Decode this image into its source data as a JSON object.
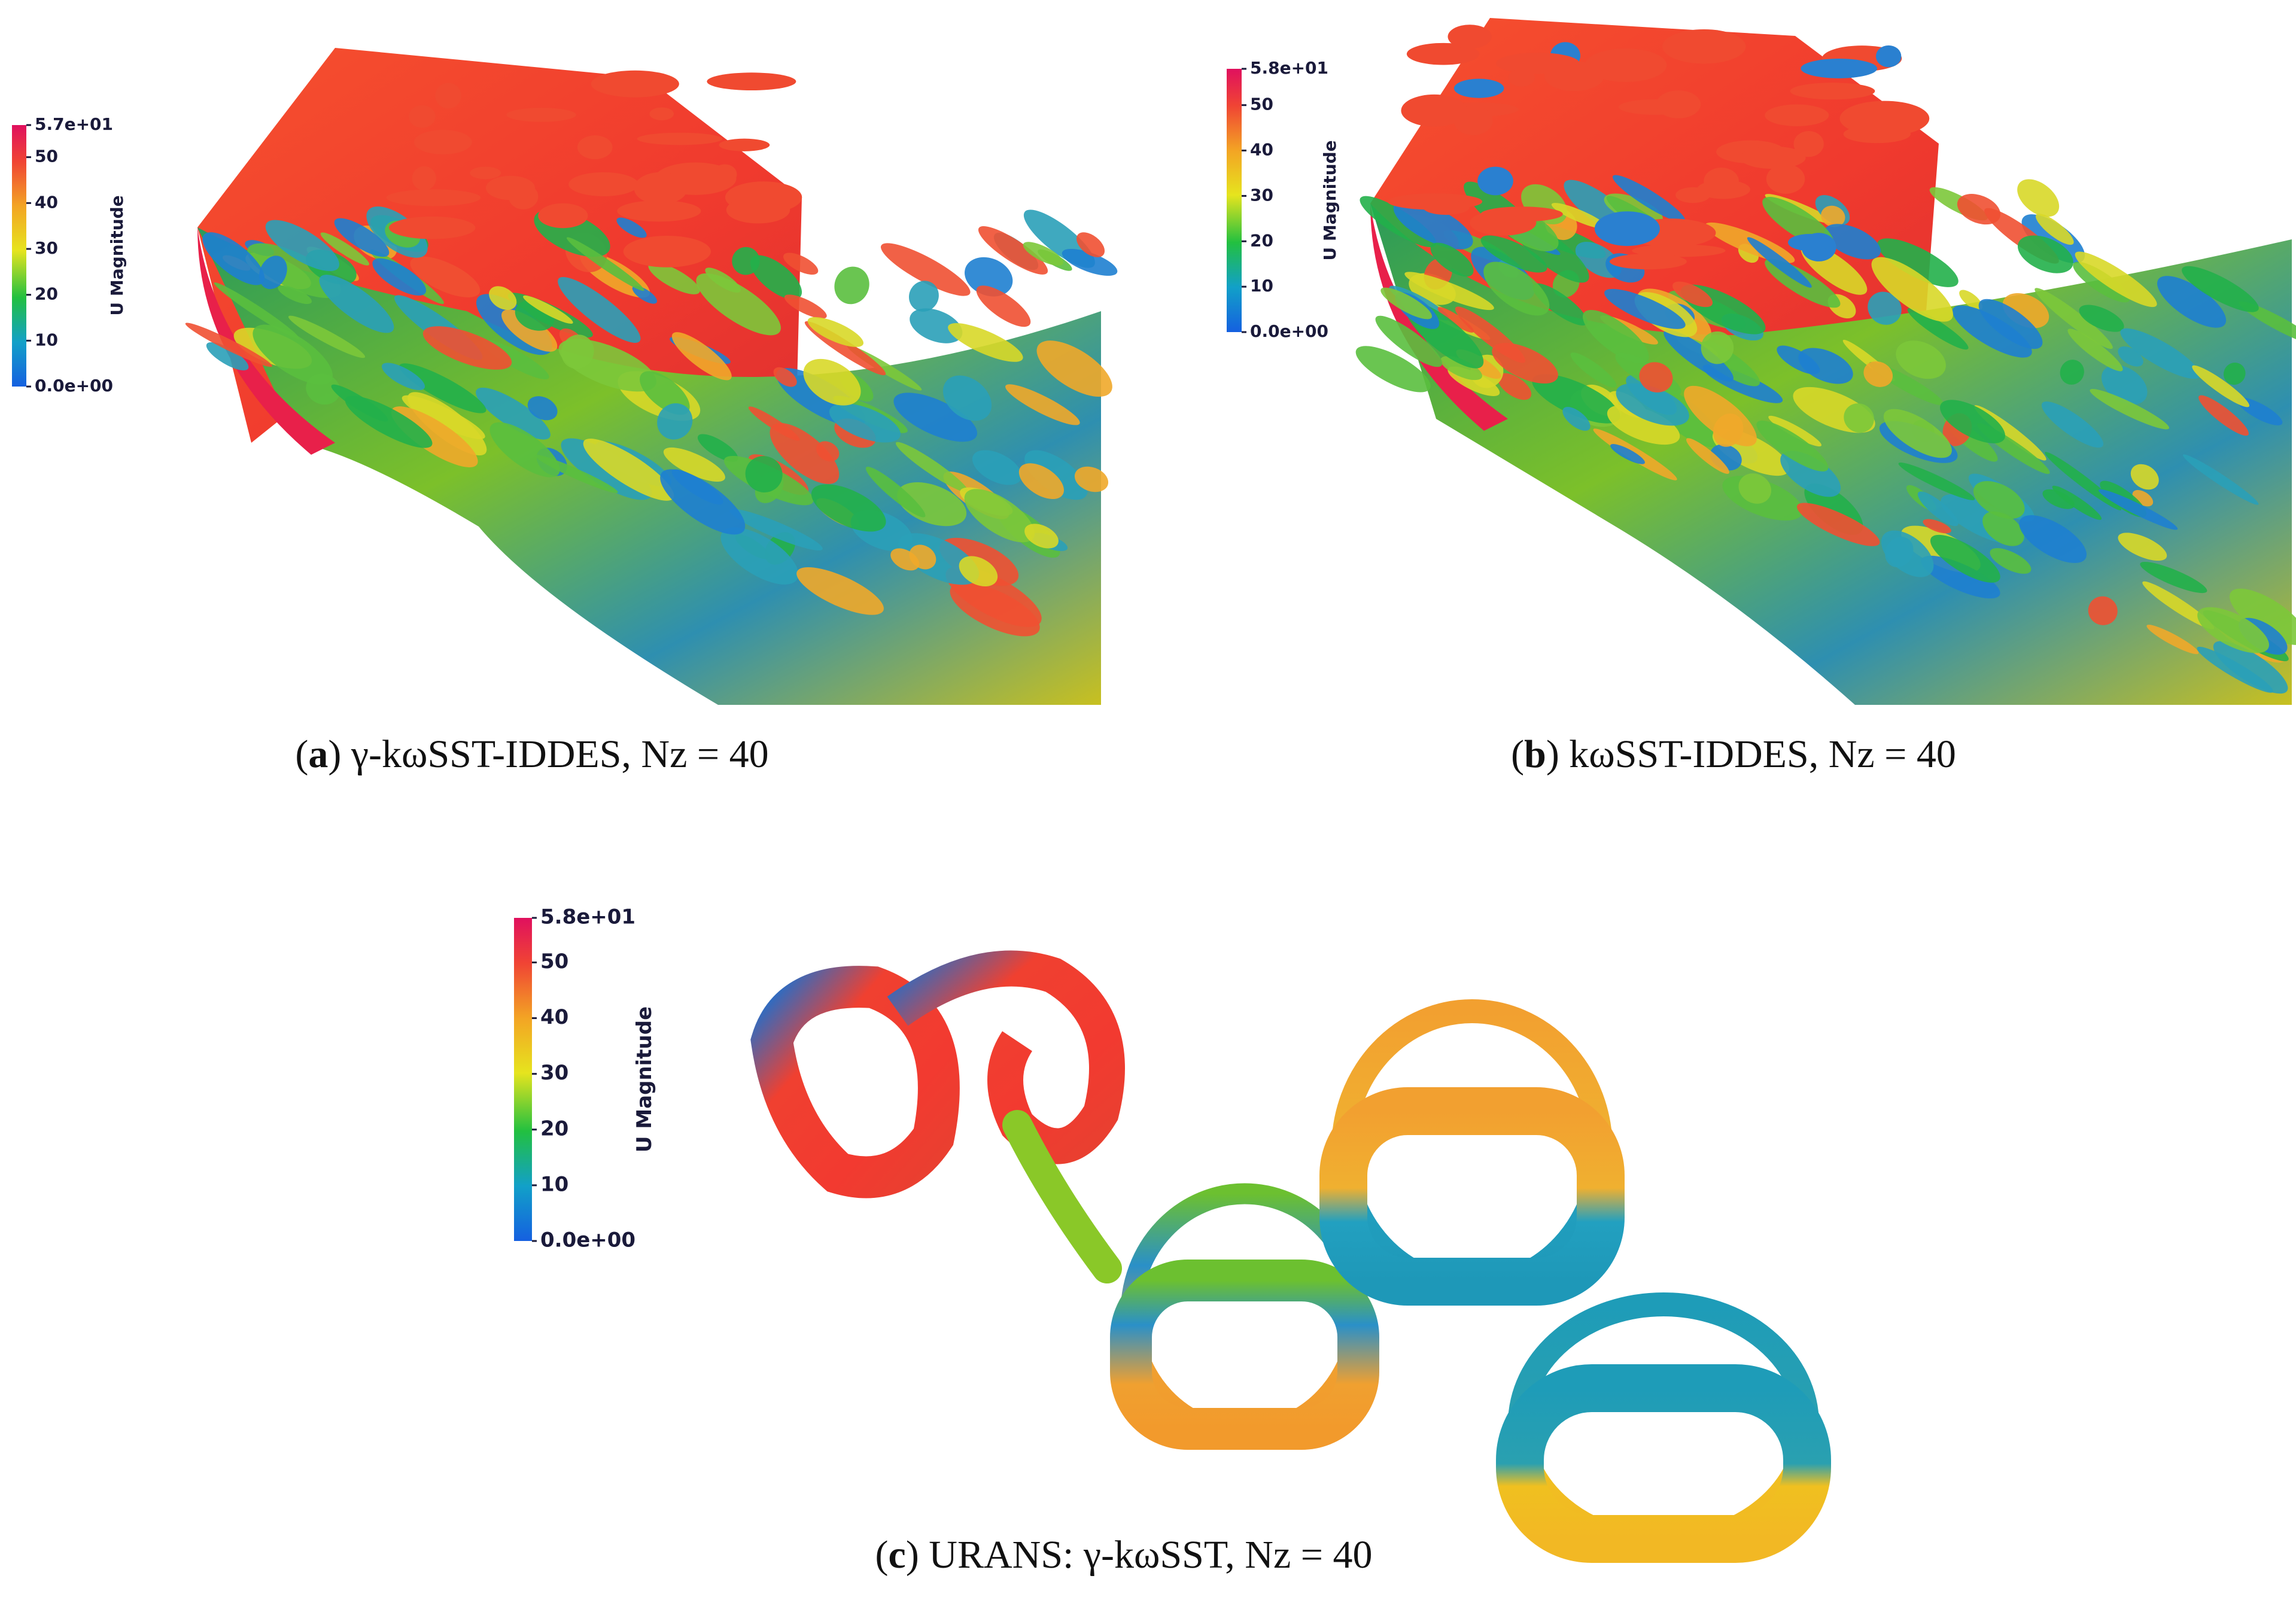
{
  "panels": [
    {
      "caption": [
        "(",
        "a",
        ") γ-kωSST-IDDES, Nz = 40"
      ],
      "colorbar": {
        "title": "U Magnitude",
        "ticks": [
          "5.7e+01",
          "50",
          "40",
          "30",
          "20",
          "10",
          "0.0e+00"
        ]
      }
    },
    {
      "caption": [
        "(",
        "b",
        ") kωSST-IDDES, Nz = 40"
      ],
      "colorbar": {
        "title": "U Magnitude",
        "ticks": [
          "5.8e+01",
          "50",
          "40",
          "30",
          "20",
          "10",
          "0.0e+00"
        ]
      }
    },
    {
      "caption": [
        "(",
        "c",
        ") URANS: γ-kωSST, Nz = 40"
      ],
      "colorbar": {
        "title": "U Magnitude",
        "ticks": [
          "5.8e+01",
          "50",
          "40",
          "30",
          "20",
          "10",
          "0.0e+00"
        ]
      }
    }
  ]
}
